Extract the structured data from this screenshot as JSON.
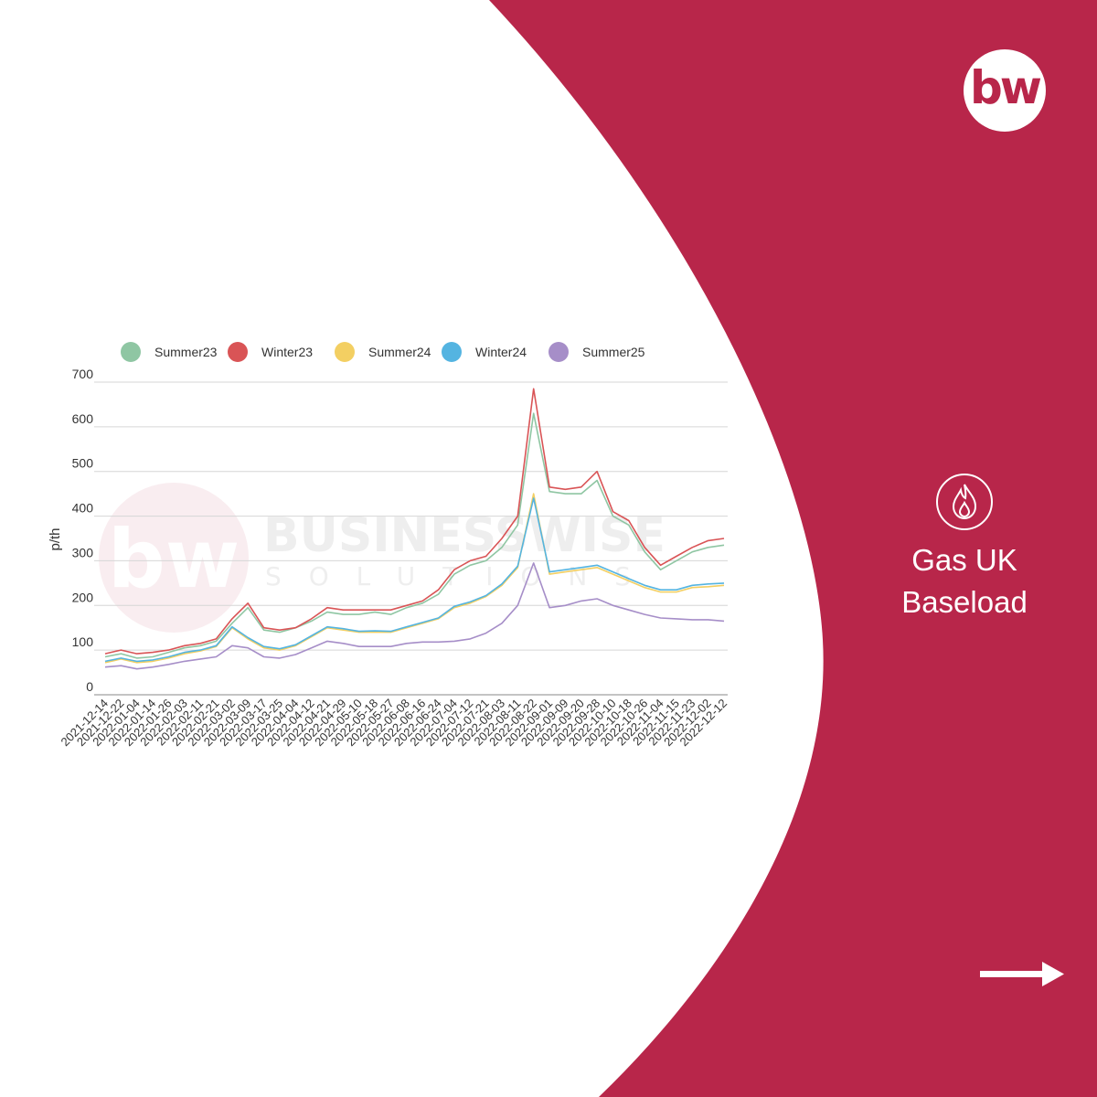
{
  "brand": {
    "logo_text": "bw",
    "watermark_logo_text": "bw",
    "watermark_name": "BUSINESSWISE",
    "watermark_sub": "SOLUTIONS",
    "colors": {
      "brand_red": "#b8264a",
      "white": "#ffffff"
    }
  },
  "side_panel": {
    "icon": "flame-icon",
    "title_line1": "Gas UK",
    "title_line2": "Baseload",
    "next_icon": "arrow-right-icon"
  },
  "chart_data": {
    "type": "line",
    "ylabel": "p/th",
    "ylim": [
      0,
      700
    ],
    "yticks": [
      0,
      100,
      200,
      300,
      400,
      500,
      600,
      700
    ],
    "grid": true,
    "legend_position": "top",
    "x_ticks": [
      "2021-12-14",
      "2021-12-22",
      "2022-01-04",
      "2022-01-14",
      "2022-01-26",
      "2022-02-03",
      "2022-02-11",
      "2022-02-21",
      "2022-03-02",
      "2022-03-09",
      "2022-03-17",
      "2022-03-25",
      "2022-04-04",
      "2022-04-12",
      "2022-04-21",
      "2022-04-29",
      "2022-05-10",
      "2022-05-18",
      "2022-05-27",
      "2022-06-08",
      "2022-06-16",
      "2022-06-24",
      "2022-07-04",
      "2022-07-12",
      "2022-07-21",
      "2022-08-03",
      "2022-08-11",
      "2022-08-22",
      "2022-09-01",
      "2022-09-09",
      "2022-09-20",
      "2022-09-28",
      "2022-10-10",
      "2022-10-18",
      "2022-10-26",
      "2022-11-04",
      "2022-11-15",
      "2022-11-23",
      "2022-12-02",
      "2022-12-12"
    ],
    "series": [
      {
        "name": "Summer23",
        "color": "#8fc6a3",
        "values": [
          85,
          92,
          82,
          85,
          95,
          105,
          110,
          120,
          160,
          195,
          145,
          140,
          150,
          165,
          185,
          180,
          180,
          185,
          180,
          195,
          205,
          225,
          270,
          290,
          300,
          330,
          380,
          630,
          455,
          450,
          450,
          480,
          400,
          380,
          320,
          280,
          300,
          320,
          330,
          335
        ]
      },
      {
        "name": "Winter23",
        "color": "#d95456",
        "values": [
          92,
          100,
          92,
          95,
          100,
          110,
          115,
          125,
          170,
          205,
          150,
          145,
          150,
          170,
          195,
          190,
          190,
          190,
          190,
          200,
          210,
          235,
          280,
          300,
          310,
          350,
          400,
          685,
          465,
          460,
          465,
          500,
          410,
          390,
          330,
          290,
          310,
          330,
          345,
          350
        ]
      },
      {
        "name": "Summer24",
        "color": "#f3cf62",
        "values": [
          72,
          80,
          72,
          75,
          82,
          92,
          98,
          108,
          150,
          125,
          105,
          100,
          110,
          130,
          150,
          145,
          140,
          140,
          140,
          150,
          160,
          170,
          195,
          205,
          220,
          245,
          285,
          450,
          270,
          275,
          280,
          285,
          270,
          255,
          240,
          230,
          230,
          240,
          242,
          245
        ]
      },
      {
        "name": "Winter24",
        "color": "#54b4e1",
        "values": [
          75,
          82,
          75,
          78,
          85,
          95,
          100,
          110,
          152,
          128,
          108,
          103,
          112,
          132,
          152,
          148,
          142,
          143,
          142,
          152,
          162,
          172,
          198,
          208,
          222,
          248,
          288,
          440,
          275,
          280,
          285,
          290,
          275,
          260,
          245,
          235,
          235,
          245,
          248,
          250
        ]
      },
      {
        "name": "Summer25",
        "color": "#a68ec8",
        "values": [
          62,
          65,
          58,
          62,
          68,
          75,
          80,
          85,
          110,
          105,
          85,
          82,
          90,
          105,
          120,
          115,
          108,
          108,
          108,
          115,
          118,
          118,
          120,
          125,
          138,
          160,
          200,
          295,
          195,
          200,
          210,
          215,
          200,
          190,
          180,
          172,
          170,
          168,
          168,
          165
        ]
      }
    ]
  }
}
